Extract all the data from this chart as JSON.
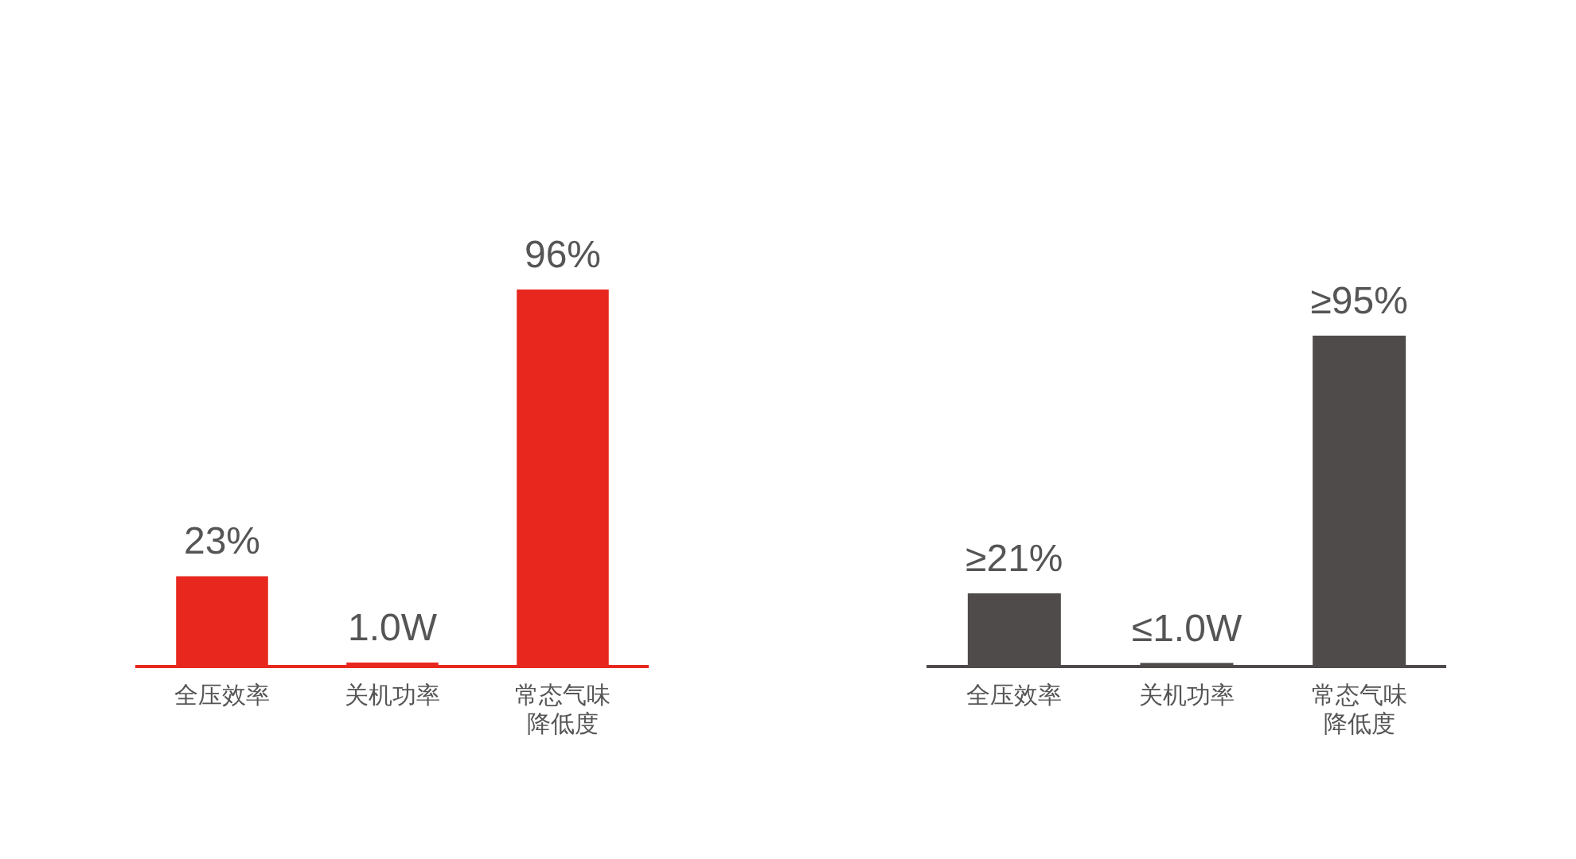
{
  "chart_data": [
    {
      "type": "bar",
      "categories": [
        "全压效率",
        "关机功率",
        "常态气味降低度"
      ],
      "values": [
        23,
        1.0,
        96
      ],
      "value_labels": [
        "23%",
        "1.0W",
        "96%"
      ],
      "color": "#e8281f"
    },
    {
      "type": "bar",
      "categories": [
        "全压效率",
        "关机功率",
        "常态气味降低度"
      ],
      "values": [
        21,
        1.0,
        95
      ],
      "value_labels": [
        "≥21%",
        "≤1.0W",
        "≥95%"
      ],
      "color": "#4f4b4b"
    }
  ]
}
